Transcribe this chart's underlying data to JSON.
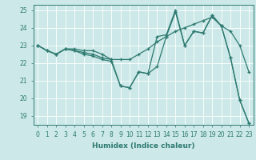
{
  "xlabel": "Humidex (Indice chaleur)",
  "background_color": "#cce8e8",
  "grid_color": "#ffffff",
  "line_color": "#2d7a70",
  "xlim": [
    -0.5,
    23.5
  ],
  "ylim": [
    18.5,
    25.3
  ],
  "yticks": [
    19,
    20,
    21,
    22,
    23,
    24,
    25
  ],
  "xticks": [
    0,
    1,
    2,
    3,
    4,
    5,
    6,
    7,
    8,
    9,
    10,
    11,
    12,
    13,
    14,
    15,
    16,
    17,
    18,
    19,
    20,
    21,
    22,
    23
  ],
  "lines": [
    [
      23.0,
      22.7,
      22.5,
      22.8,
      22.7,
      22.6,
      22.5,
      22.3,
      22.2,
      20.7,
      20.6,
      21.5,
      21.4,
      23.5,
      23.6,
      25.0,
      23.0,
      23.8,
      23.7,
      24.7,
      24.1,
      22.3,
      19.9,
      18.6
    ],
    [
      23.0,
      22.7,
      22.5,
      22.8,
      22.8,
      22.7,
      22.7,
      22.5,
      22.2,
      22.2,
      22.2,
      22.5,
      22.8,
      23.2,
      23.5,
      23.8,
      24.0,
      24.2,
      24.4,
      24.6,
      24.1,
      23.8,
      23.0,
      21.5
    ],
    [
      23.0,
      22.7,
      22.5,
      22.8,
      22.7,
      22.5,
      22.4,
      22.2,
      22.1,
      20.7,
      20.6,
      21.5,
      21.4,
      21.8,
      23.5,
      24.9,
      23.0,
      23.8,
      23.7,
      24.7,
      24.1,
      22.3,
      19.9,
      18.6
    ]
  ],
  "xlabel_fontsize": 6.5,
  "tick_fontsize": 5.5,
  "linewidth": 0.9,
  "markersize": 3.5
}
